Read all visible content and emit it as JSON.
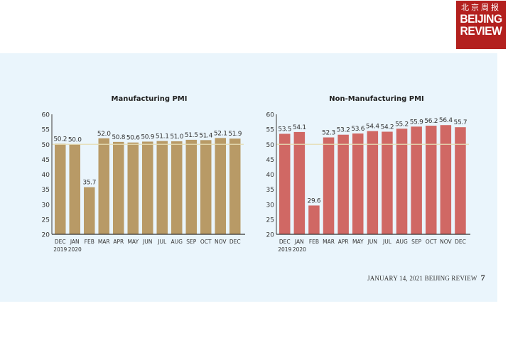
{
  "logo": {
    "chinese": "北京周报",
    "line1": "BEIJING",
    "line2": "REVIEW",
    "color": "#b3201e"
  },
  "footer": {
    "text": "JANUARY 14, 2021 BEIJING REVIEW",
    "page": "7"
  },
  "chart_data": [
    {
      "type": "bar",
      "title": "Manufacturing PMI",
      "categories": [
        "DEC|2019",
        "JAN|2020",
        "FEB",
        "MAR",
        "APR",
        "MAY",
        "JUN",
        "JUL",
        "AUG",
        "SEP",
        "OCT",
        "NOV",
        "DEC"
      ],
      "values": [
        50.2,
        50.0,
        35.7,
        52.0,
        50.8,
        50.6,
        50.9,
        51.1,
        51.0,
        51.5,
        51.4,
        52.1,
        51.9
      ],
      "value_labels": [
        "50.2",
        "50.0",
        "35.7",
        "52.0",
        "50.8",
        "50.6",
        "50.9",
        "51.1",
        "51.0",
        "51.5",
        "51.4",
        "52.1",
        "51.9"
      ],
      "ylim": [
        20,
        60
      ],
      "yticks": [
        "20",
        "25",
        "30",
        "35",
        "40",
        "45",
        "50",
        "55",
        "60"
      ],
      "reference_line": 50,
      "bar_color": "#b89a66",
      "xlabel": "",
      "ylabel": "",
      "grid": false
    },
    {
      "type": "bar",
      "title": "Non-Manufacturing PMI",
      "categories": [
        "DEC|2019",
        "JAN|2020",
        "FEB",
        "MAR",
        "APR",
        "MAY",
        "JUN",
        "JUL",
        "AUG",
        "SEP",
        "OCT",
        "NOV",
        "DEC"
      ],
      "values": [
        53.5,
        54.1,
        29.6,
        52.3,
        53.2,
        53.6,
        54.4,
        54.2,
        55.2,
        55.9,
        56.2,
        56.4,
        55.7
      ],
      "value_labels": [
        "53.5",
        "54.1",
        "29.6",
        "52.3",
        "53.2",
        "53.6",
        "54.4",
        "54.2",
        "55.2",
        "55.9",
        "56.2",
        "56.4",
        "55.7"
      ],
      "ylim": [
        20,
        60
      ],
      "yticks": [
        "20",
        "25",
        "30",
        "35",
        "40",
        "45",
        "50",
        "55",
        "60"
      ],
      "reference_line": 50,
      "bar_color": "#d06864",
      "xlabel": "",
      "ylabel": "",
      "grid": false
    }
  ]
}
